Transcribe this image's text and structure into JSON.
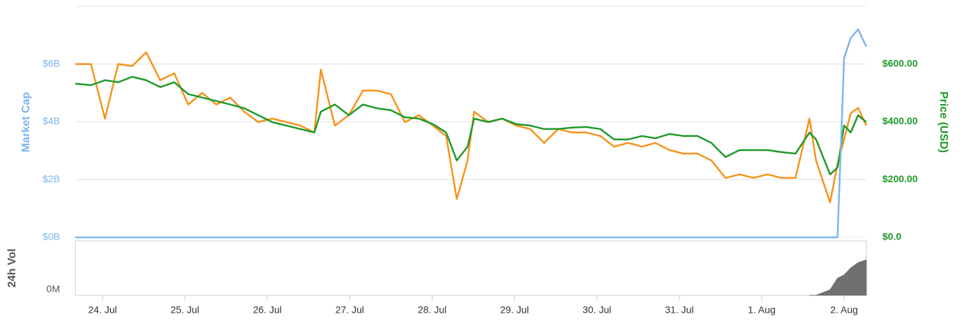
{
  "chart_data": [
    {
      "type": "line",
      "ylabel": "Market Cap",
      "y2label": "Price (USD)",
      "xlim": [
        -0.33,
        9.27
      ],
      "ylim": [
        0,
        8
      ],
      "yticks": [
        {
          "value": 0,
          "label": "$0B"
        },
        {
          "value": 2,
          "label": "$2B"
        },
        {
          "value": 4,
          "label": "$4B"
        },
        {
          "value": 6,
          "label": "$6B"
        }
      ],
      "y2lim": [
        0,
        800
      ],
      "y2ticks": [
        {
          "value": 0,
          "label": "$0.0"
        },
        {
          "value": 200,
          "label": "$200.00"
        },
        {
          "value": 400,
          "label": "$400.00"
        },
        {
          "value": 600,
          "label": "$600.00"
        }
      ],
      "grid": true,
      "x": [
        -0.33,
        -0.14,
        0.03,
        0.19,
        0.36,
        0.53,
        0.7,
        0.87,
        1.04,
        1.21,
        1.38,
        1.55,
        1.72,
        1.89,
        2.06,
        2.23,
        2.4,
        2.57,
        2.65,
        2.82,
        2.99,
        3.16,
        3.33,
        3.5,
        3.67,
        3.84,
        4.01,
        4.17,
        4.3,
        4.43,
        4.51,
        4.68,
        4.85,
        5.02,
        5.19,
        5.36,
        5.53,
        5.7,
        5.87,
        6.04,
        6.21,
        6.38,
        6.55,
        6.71,
        6.88,
        7.05,
        7.22,
        7.39,
        7.56,
        7.73,
        7.9,
        8.07,
        8.24,
        8.41,
        8.58,
        8.66,
        8.83,
        8.92,
        9.0,
        9.08,
        9.17,
        9.27
      ],
      "series": [
        {
          "color": "#f7931a",
          "axis": "y2",
          "values": [
            600,
            600,
            411,
            600,
            593,
            641,
            544,
            568,
            460,
            500,
            460,
            484,
            435,
            399,
            411,
            399,
            387,
            363,
            581,
            387,
            423,
            508,
            508,
            496,
            399,
            423,
            387,
            351,
            133,
            266,
            435,
            399,
            411,
            387,
            375,
            327,
            375,
            363,
            363,
            351,
            314,
            327,
            314,
            327,
            302,
            290,
            290,
            266,
            206,
            218,
            206,
            218,
            206,
            206,
            411,
            266,
            121,
            254,
            339,
            430,
            448,
            387
          ]
        },
        {
          "name": "Price (USD)",
          "color": "#1e9a2a",
          "axis": "y2",
          "values": [
            532,
            527,
            544,
            537,
            556,
            544,
            520,
            537,
            496,
            484,
            472,
            460,
            447,
            423,
            399,
            387,
            375,
            363,
            435,
            460,
            423,
            460,
            447,
            440,
            416,
            411,
            392,
            363,
            266,
            314,
            411,
            399,
            411,
            392,
            387,
            375,
            375,
            380,
            382,
            375,
            339,
            339,
            351,
            343,
            358,
            351,
            351,
            327,
            278,
            302,
            302,
            302,
            295,
            290,
            363,
            339,
            218,
            242,
            387,
            363,
            423,
            399
          ]
        },
        {
          "name": "Market Cap",
          "color": "#7cb5ec",
          "values": [
            0,
            0,
            0,
            0,
            0,
            0,
            0,
            0,
            0,
            0,
            0,
            0,
            0,
            0,
            0,
            0,
            0,
            0,
            0,
            0,
            0,
            0,
            0,
            0,
            0,
            0,
            0,
            0,
            0,
            0,
            0,
            0,
            0,
            0,
            0,
            0,
            0,
            0,
            0,
            0,
            0,
            0,
            0,
            0,
            0,
            0,
            0,
            0,
            0,
            0,
            0,
            0,
            0,
            0,
            0,
            0,
            0,
            0,
            6.2,
            6.9,
            7.2,
            6.6
          ]
        }
      ]
    },
    {
      "type": "area",
      "ylabel": "24h Vol",
      "xlim": [
        -0.33,
        9.27
      ],
      "xticks": [
        {
          "value": 0,
          "label": "24. Jul"
        },
        {
          "value": 1,
          "label": "25. Jul"
        },
        {
          "value": 2,
          "label": "26. Jul"
        },
        {
          "value": 3,
          "label": "27. Jul"
        },
        {
          "value": 4,
          "label": "28. Jul"
        },
        {
          "value": 5,
          "label": "29. Jul"
        },
        {
          "value": 6,
          "label": "30. Jul"
        },
        {
          "value": 7,
          "label": "31. Jul"
        },
        {
          "value": 8,
          "label": "1. Aug"
        },
        {
          "value": 9,
          "label": "2. Aug"
        }
      ],
      "ylim": [
        0,
        80
      ],
      "yticks": [
        {
          "value": 0,
          "label": "0M"
        }
      ],
      "color": "#707070",
      "x": [
        8.58,
        8.66,
        8.83,
        8.92,
        9.0,
        9.08,
        9.17,
        9.27
      ],
      "values": [
        0,
        0,
        8,
        25,
        30,
        40,
        48,
        52
      ]
    }
  ]
}
